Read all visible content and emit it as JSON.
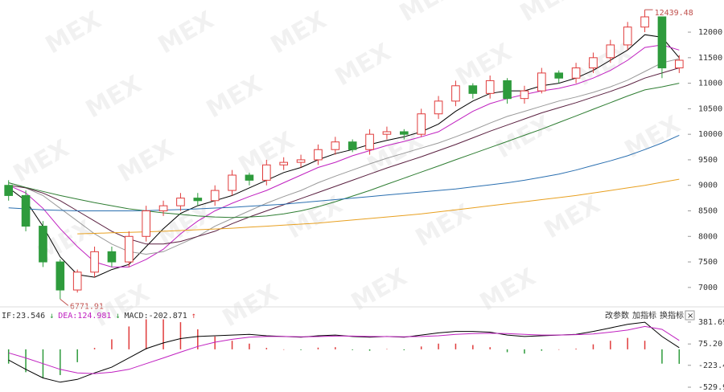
{
  "chart_data": [
    {
      "type": "candlestick",
      "watermark": "MEX",
      "up_color": "#e03c3c",
      "down_color": "#2e9b3c",
      "open": [
        9000,
        8800,
        8200,
        7500,
        6950,
        7300,
        7700,
        7500,
        8000,
        8500,
        8600,
        8750,
        8700,
        8900,
        9200,
        9100,
        9400,
        9450,
        9500,
        9700,
        9850,
        9700,
        10000,
        10050,
        10000,
        10400,
        10650,
        10950,
        10800,
        11050,
        10700,
        10850,
        11200,
        11100,
        11300,
        11500,
        11750,
        12100,
        12300,
        11300
      ],
      "high": [
        9100,
        8900,
        8300,
        7550,
        7350,
        7800,
        7800,
        8100,
        8600,
        8700,
        8850,
        8850,
        9000,
        9300,
        9250,
        9500,
        9550,
        9600,
        9800,
        9950,
        9900,
        10100,
        10150,
        10100,
        10500,
        10750,
        11050,
        11000,
        11150,
        11100,
        10950,
        11300,
        11250,
        11400,
        11600,
        11850,
        12200,
        12439.48,
        12300,
        11550
      ],
      "low": [
        8700,
        8100,
        7400,
        6771.91,
        6900,
        7200,
        7400,
        7400,
        7900,
        8400,
        8500,
        8600,
        8600,
        8800,
        9000,
        9000,
        9300,
        9350,
        9400,
        9600,
        9650,
        9600,
        9900,
        9900,
        9950,
        10300,
        10550,
        10700,
        10700,
        10600,
        10600,
        10800,
        11000,
        11000,
        11200,
        11400,
        11650,
        12000,
        11100,
        11200
      ],
      "close": [
        8800,
        8200,
        7500,
        6950,
        7300,
        7700,
        7500,
        8000,
        8500,
        8600,
        8750,
        8700,
        8900,
        9200,
        9100,
        9400,
        9450,
        9500,
        9700,
        9850,
        9700,
        10000,
        10050,
        10000,
        10400,
        10650,
        10950,
        10800,
        11050,
        10700,
        10850,
        11200,
        11100,
        11300,
        11500,
        11750,
        12100,
        12300,
        11300,
        11450
      ],
      "series": [
        {
          "color": "#000000",
          "values": [
            8950,
            8700,
            8200,
            7600,
            7250,
            7200,
            7350,
            7450,
            7800,
            8150,
            8450,
            8600,
            8700,
            8800,
            8950,
            9100,
            9250,
            9350,
            9500,
            9620,
            9700,
            9800,
            9880,
            9950,
            10050,
            10200,
            10450,
            10650,
            10800,
            10850,
            10850,
            10950,
            11000,
            11100,
            11250,
            11450,
            11650,
            11950,
            11900,
            11500
          ]
        },
        {
          "color": "#c020c0",
          "values": [
            9000,
            8850,
            8550,
            8150,
            7800,
            7500,
            7400,
            7400,
            7550,
            7750,
            8050,
            8300,
            8500,
            8650,
            8780,
            8900,
            9050,
            9200,
            9350,
            9450,
            9580,
            9680,
            9780,
            9860,
            9950,
            10050,
            10250,
            10450,
            10600,
            10700,
            10780,
            10850,
            10900,
            10980,
            11100,
            11250,
            11450,
            11700,
            11750,
            11650
          ]
        },
        {
          "color": "#999999",
          "values": [
            9050,
            8950,
            8800,
            8550,
            8300,
            8050,
            7850,
            7700,
            7650,
            7700,
            7850,
            8000,
            8200,
            8350,
            8500,
            8650,
            8780,
            8900,
            9050,
            9180,
            9300,
            9420,
            9530,
            9630,
            9730,
            9830,
            9950,
            10080,
            10220,
            10350,
            10450,
            10550,
            10650,
            10730,
            10820,
            10930,
            11060,
            11230,
            11400,
            11480
          ]
        },
        {
          "color": "#5a2040",
          "values": [
            9000,
            8950,
            8850,
            8700,
            8500,
            8300,
            8100,
            7950,
            7850,
            7850,
            7900,
            8000,
            8100,
            8250,
            8380,
            8500,
            8620,
            8740,
            8860,
            8980,
            9100,
            9220,
            9340,
            9450,
            9560,
            9680,
            9800,
            9930,
            10060,
            10180,
            10300,
            10420,
            10520,
            10620,
            10730,
            10840,
            10960,
            11100,
            11200,
            11300
          ]
        },
        {
          "color": "#2e7d32",
          "values": [
            9050,
            8960,
            8880,
            8800,
            8730,
            8660,
            8600,
            8540,
            8500,
            8460,
            8430,
            8400,
            8380,
            8370,
            8380,
            8400,
            8440,
            8500,
            8580,
            8680,
            8790,
            8900,
            9020,
            9140,
            9260,
            9380,
            9500,
            9620,
            9740,
            9860,
            9980,
            10100,
            10230,
            10360,
            10490,
            10620,
            10750,
            10870,
            10930,
            11000
          ]
        },
        {
          "color": "#2a6fb0",
          "values": [
            8560,
            8540,
            8520,
            8510,
            8500,
            8500,
            8500,
            8500,
            8505,
            8515,
            8525,
            8540,
            8555,
            8570,
            8590,
            8610,
            8630,
            8660,
            8690,
            8720,
            8750,
            8780,
            8810,
            8840,
            8870,
            8900,
            8930,
            8970,
            9010,
            9050,
            9100,
            9160,
            9220,
            9300,
            9390,
            9480,
            9580,
            9700,
            9830,
            9980
          ]
        },
        {
          "color": "#e8a020",
          "values": [
            null,
            null,
            null,
            null,
            8050,
            8060,
            8070,
            8080,
            8090,
            8100,
            8115,
            8130,
            8145,
            8160,
            8180,
            8200,
            8220,
            8240,
            8260,
            8290,
            8320,
            8350,
            8380,
            8410,
            8440,
            8480,
            8520,
            8560,
            8600,
            8640,
            8680,
            8720,
            8760,
            8800,
            8850,
            8900,
            8950,
            9000,
            9060,
            9120
          ]
        }
      ],
      "annotations": [
        "12439.48",
        "6771.91"
      ],
      "ylim": [
        6730,
        12630
      ],
      "yticks": [
        7000,
        7500,
        8000,
        8500,
        9000,
        9500,
        10000,
        10500,
        11000,
        11500,
        12000
      ]
    },
    {
      "type": "macd",
      "header": [
        "IF:23.546",
        "↓",
        "DEA:124.981",
        "↓",
        "MACD:-202.871",
        "↑"
      ],
      "buttons": [
        "改参数",
        "加指标",
        "换指标",
        "×"
      ],
      "up_color": "#e03c3c",
      "down_color": "#2e9b3c",
      "series": [
        {
          "color": "#000000",
          "values": [
            -150,
            -280,
            -400,
            -460,
            -420,
            -330,
            -250,
            -120,
            10,
            90,
            150,
            180,
            190,
            200,
            210,
            190,
            180,
            170,
            190,
            200,
            180,
            170,
            180,
            170,
            200,
            230,
            250,
            250,
            240,
            200,
            180,
            190,
            200,
            210,
            250,
            300,
            350,
            380,
            180,
            23.546
          ]
        },
        {
          "color": "#c020c0",
          "values": [
            -50,
            -120,
            -200,
            -280,
            -330,
            -340,
            -320,
            -280,
            -200,
            -120,
            -40,
            40,
            100,
            140,
            170,
            180,
            180,
            175,
            178,
            185,
            185,
            180,
            178,
            176,
            180,
            190,
            210,
            220,
            225,
            220,
            210,
            200,
            200,
            205,
            215,
            240,
            270,
            320,
            280,
            124.981
          ]
        }
      ],
      "values": [
        -200,
        -320,
        -400,
        -360,
        -180,
        20,
        140,
        320,
        420,
        420,
        380,
        280,
        180,
        120,
        80,
        20,
        0,
        -10,
        24,
        30,
        -10,
        -20,
        4,
        -12,
        40,
        80,
        80,
        60,
        30,
        -40,
        -60,
        -20,
        0,
        10,
        70,
        120,
        160,
        120,
        -200,
        -202.871
      ],
      "ylim": [
        -597,
        527
      ],
      "yticks": [
        {
          "value": -529.93,
          "label": "-529.93"
        },
        {
          "value": -223.44,
          "label": "-223.44"
        },
        {
          "value": 75.2,
          "label": "75.20"
        },
        {
          "value": 381.69,
          "label": "381.69"
        }
      ]
    }
  ]
}
